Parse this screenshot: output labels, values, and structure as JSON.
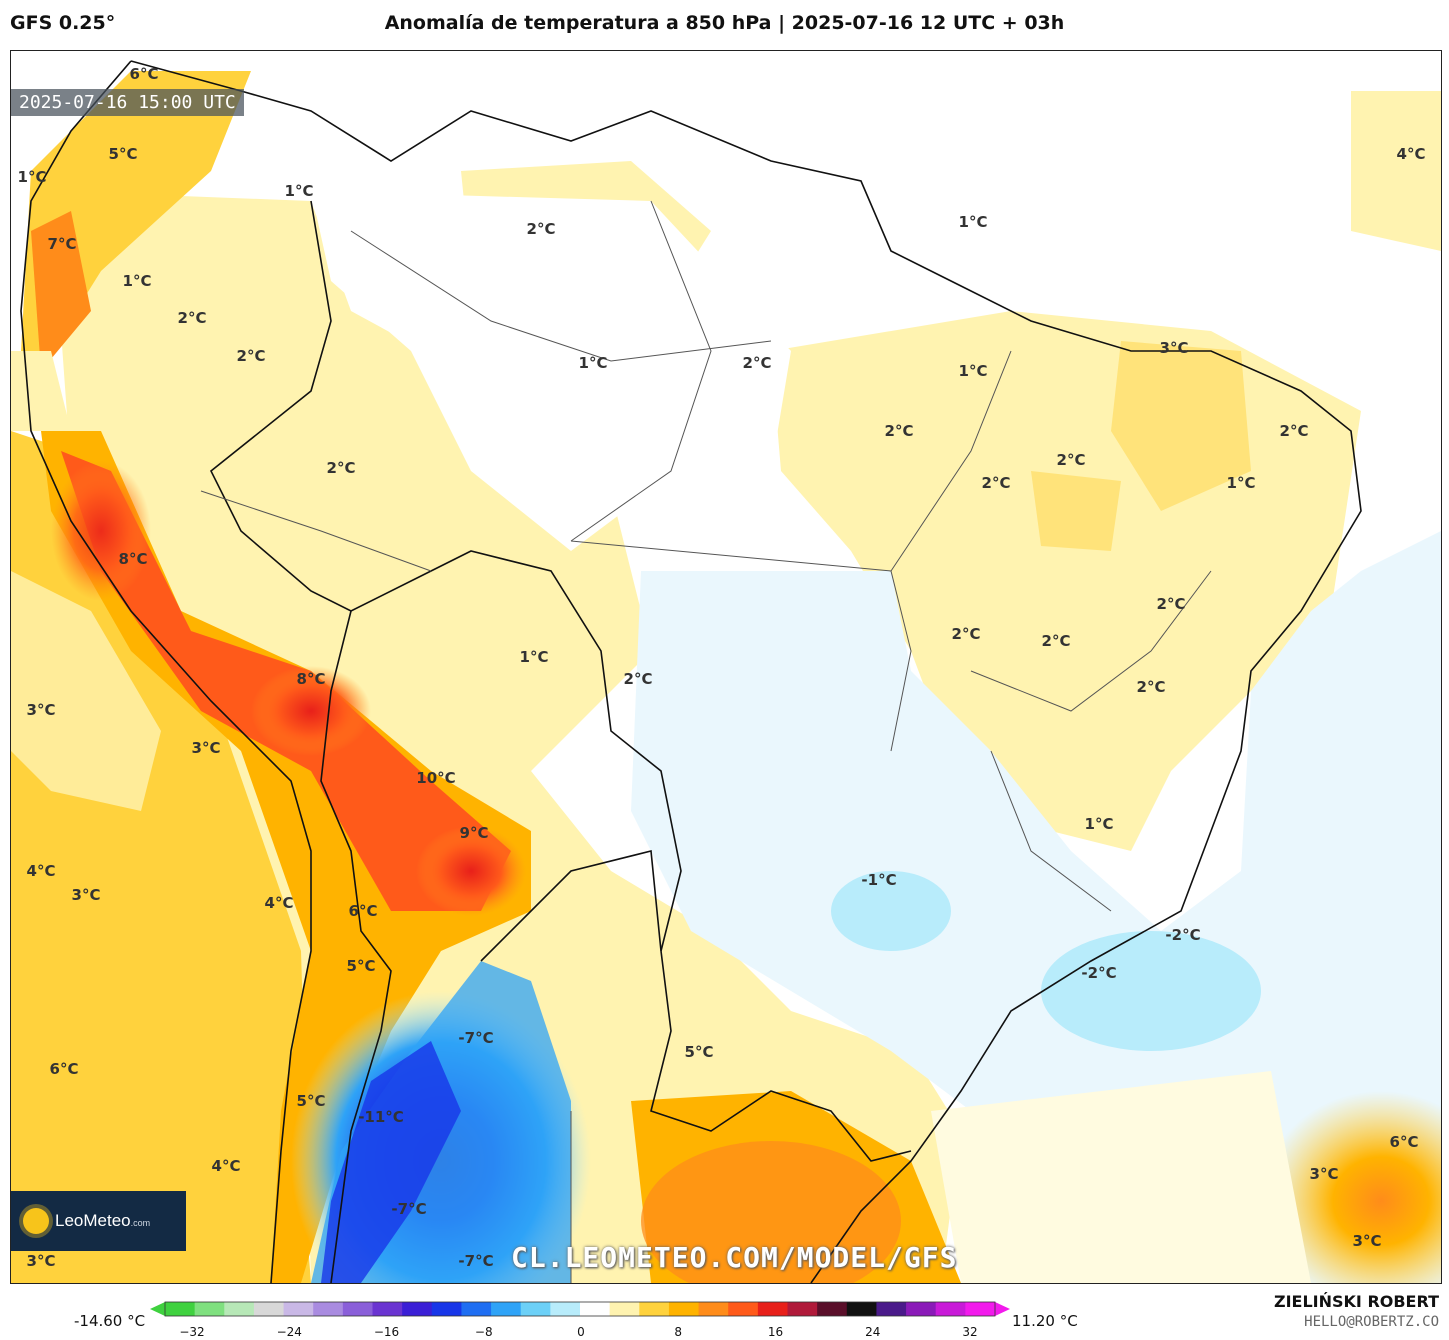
{
  "header": {
    "model": "GFS 0.25°",
    "title": "Anomalía de temperatura a 850 hPa | 2025-07-16 12 UTC + 03h"
  },
  "map": {
    "valid_time": "2025-07-16 15:00 UTC",
    "watermark": "CL.LEOMETEO.COM/MODEL/GFS",
    "logo": {
      "name": "LeoMeteo",
      "suffix": ".com"
    },
    "labels": [
      {
        "text": "6°C"
      },
      {
        "text": "5°C"
      },
      {
        "text": "1°C"
      },
      {
        "text": "7°C"
      },
      {
        "text": "1°C"
      },
      {
        "text": "1°C"
      },
      {
        "text": "2°C"
      },
      {
        "text": "2°C"
      },
      {
        "text": "2°C"
      },
      {
        "text": "2°C"
      },
      {
        "text": "1°C"
      },
      {
        "text": "2°C"
      },
      {
        "text": "1°C"
      },
      {
        "text": "1°C"
      },
      {
        "text": "3°C"
      },
      {
        "text": "4°C"
      },
      {
        "text": "2°C"
      },
      {
        "text": "2°C"
      },
      {
        "text": "2°C"
      },
      {
        "text": "2°C"
      },
      {
        "text": "1°C"
      },
      {
        "text": "8°C"
      },
      {
        "text": "2°C"
      },
      {
        "text": "2°C"
      },
      {
        "text": "2°C"
      },
      {
        "text": "1°C"
      },
      {
        "text": "2°C"
      },
      {
        "text": "2°C"
      },
      {
        "text": "8°C"
      },
      {
        "text": "3°C"
      },
      {
        "text": "3°C"
      },
      {
        "text": "10°C"
      },
      {
        "text": "9°C"
      },
      {
        "text": "1°C"
      },
      {
        "text": "4°C"
      },
      {
        "text": "3°C"
      },
      {
        "text": "-1°C"
      },
      {
        "text": "4°C"
      },
      {
        "text": "6°C"
      },
      {
        "text": "-2°C"
      },
      {
        "text": "-2°C"
      },
      {
        "text": "5°C"
      },
      {
        "text": "-7°C"
      },
      {
        "text": "5°C"
      },
      {
        "text": "6°C"
      },
      {
        "text": "5°C"
      },
      {
        "text": "-11°C"
      },
      {
        "text": "4°C"
      },
      {
        "text": "6°C"
      },
      {
        "text": "3°C"
      },
      {
        "text": "-7°C"
      },
      {
        "text": "3°C"
      },
      {
        "text": "-7°C"
      },
      {
        "text": "3°C"
      }
    ]
  },
  "colorbar": {
    "min_label": "-14.60 °C",
    "max_label": "11.20 °C",
    "ticks": [
      "−32",
      "−24",
      "−16",
      "−8",
      "0",
      "8",
      "16",
      "24",
      "32"
    ],
    "colors": [
      "#3fd13f",
      "#7fe07f",
      "#b7e8b7",
      "#d8d8d8",
      "#c9b8e6",
      "#a98be0",
      "#8a5fd9",
      "#6a34d1",
      "#3b1fd6",
      "#1836e8",
      "#1f6ef2",
      "#2fa3f7",
      "#6cd0f7",
      "#b8ecfb",
      "#ffffff",
      "#fff3b0",
      "#ffd23d",
      "#ffb300",
      "#ff8c1a",
      "#ff5a1a",
      "#e8201a",
      "#b01a3a",
      "#5a0f2a",
      "#111111",
      "#4a1a8a",
      "#8a1ab8",
      "#c81ad8",
      "#f21aec"
    ]
  },
  "footer": {
    "author": "ZIELIŃSKI ROBERT",
    "email": "HELLO@ROBERTZ.CO"
  }
}
